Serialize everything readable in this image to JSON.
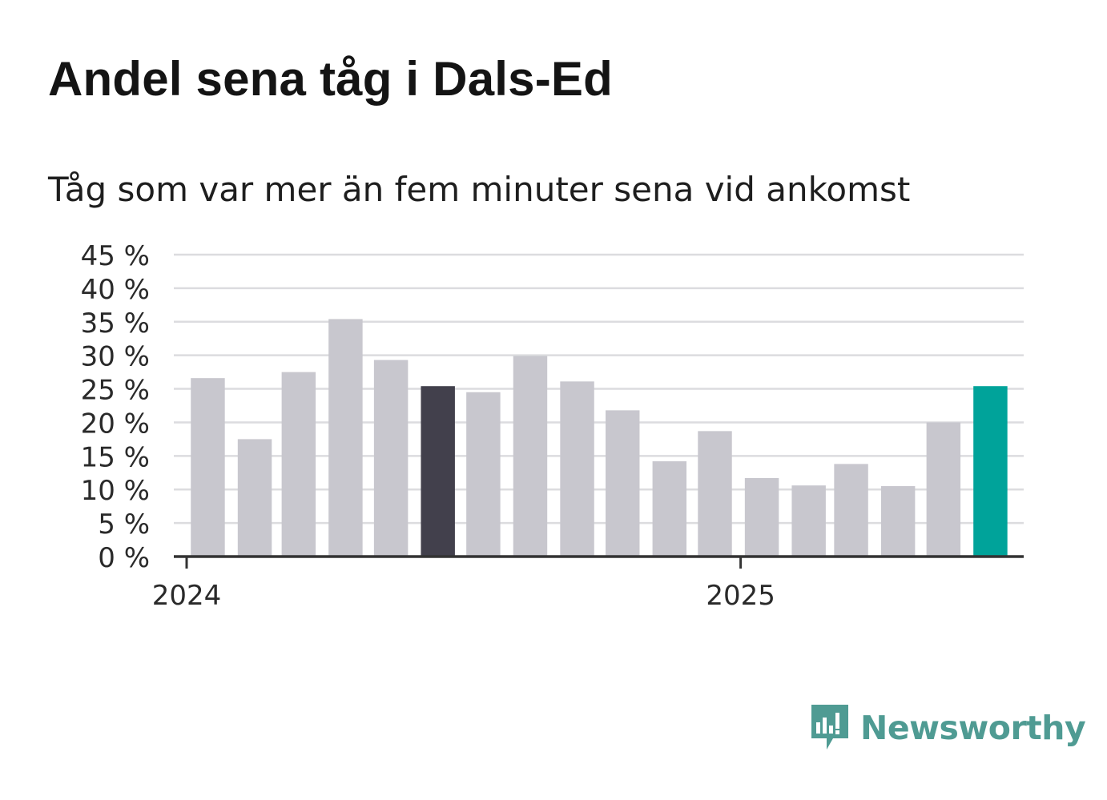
{
  "title": "Andel sena tåg i Dals-Ed",
  "subtitle": "Tåg som var mer än fem minuter sena vid ankomst",
  "brand": {
    "name": "Newsworthy",
    "color": "#4f9b93",
    "icon": "newsworthy-chart-bubble-icon"
  },
  "chart_data": {
    "type": "bar",
    "categories": [
      "2024-01",
      "2024-02",
      "2024-03",
      "2024-04",
      "2024-05",
      "2024-06",
      "2024-07",
      "2024-08",
      "2024-09",
      "2024-10",
      "2024-11",
      "2024-12",
      "2025-01",
      "2025-02",
      "2025-03",
      "2025-04",
      "2025-05",
      "2025-06"
    ],
    "values": [
      26.6,
      17.5,
      27.5,
      35.4,
      29.3,
      25.4,
      24.5,
      29.9,
      26.1,
      21.8,
      14.2,
      18.7,
      11.7,
      10.6,
      13.8,
      10.5,
      20.0,
      25.4
    ],
    "bar_colors": [
      "#c8c7ce",
      "#c8c7ce",
      "#c8c7ce",
      "#c8c7ce",
      "#c8c7ce",
      "#42404c",
      "#c8c7ce",
      "#c8c7ce",
      "#c8c7ce",
      "#c8c7ce",
      "#c8c7ce",
      "#c8c7ce",
      "#c8c7ce",
      "#c8c7ce",
      "#c8c7ce",
      "#c8c7ce",
      "#c8c7ce",
      "#00a39a"
    ],
    "ylim": [
      0,
      45
    ],
    "yticks": [
      0,
      5,
      10,
      15,
      20,
      25,
      30,
      35,
      40,
      45
    ],
    "ytick_labels": [
      "0 %",
      "5 %",
      "10 %",
      "15 %",
      "20 %",
      "25 %",
      "30 %",
      "35 %",
      "40 %",
      "45 %"
    ],
    "xticks": [
      {
        "date": "2024-01-01",
        "label": "2024"
      },
      {
        "date": "2025-01-01",
        "label": "2025"
      }
    ],
    "xlim": [
      "2024-01-01",
      "2025-07-07"
    ],
    "grid": true,
    "legend": false,
    "xlabel": "",
    "ylabel": ""
  }
}
